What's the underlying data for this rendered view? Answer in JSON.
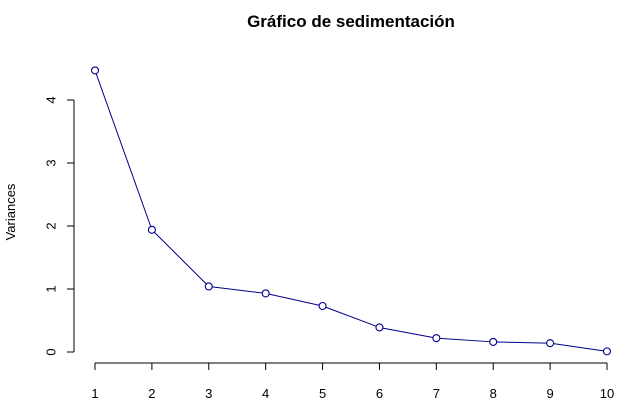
{
  "chart_data": {
    "type": "line",
    "title": "Gráfico de sedimentación",
    "xlabel": "",
    "ylabel": "Variances",
    "x": [
      1,
      2,
      3,
      4,
      5,
      6,
      7,
      8,
      9,
      10
    ],
    "series": [
      {
        "values": [
          4.47,
          1.94,
          1.04,
          0.93,
          0.73,
          0.39,
          0.22,
          0.16,
          0.14,
          0.01
        ]
      }
    ],
    "xticks": [
      "1",
      "2",
      "3",
      "4",
      "5",
      "6",
      "7",
      "8",
      "9",
      "10"
    ],
    "yticks": [
      "0",
      "1",
      "2",
      "3",
      "4"
    ],
    "xlim": [
      1,
      10
    ],
    "ylim": [
      0,
      4
    ],
    "grid": false,
    "line_color": "#00008b",
    "marker": "open-circle"
  }
}
